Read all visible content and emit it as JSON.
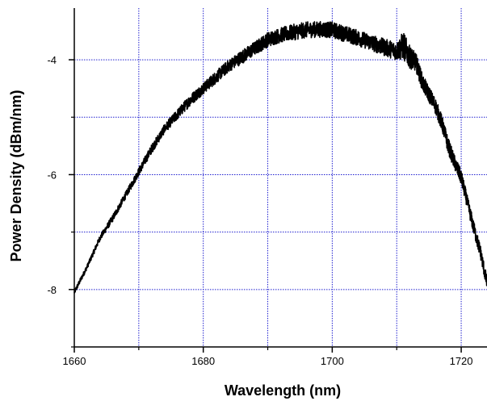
{
  "chart_data": {
    "type": "line",
    "title": "",
    "xlabel": "Wavelength (nm)",
    "ylabel": "Power Density (dBm/nm)",
    "xlim": [
      1660,
      1724
    ],
    "ylim": [
      -9,
      -3.1
    ],
    "x_ticks": [
      1660,
      1680,
      1700,
      1720
    ],
    "x_tick_labels": [
      "1660",
      "1680",
      "1700",
      "1720"
    ],
    "x_minor_ticks": [
      1670,
      1690,
      1710
    ],
    "y_ticks": [
      -8,
      -6,
      -4
    ],
    "y_tick_labels": [
      "-8",
      "-6",
      "-4"
    ],
    "y_minor_ticks": [
      -9,
      -7,
      -5
    ],
    "grid": true,
    "grid_color": "#2020d0",
    "line_color": "#000000",
    "series": [
      {
        "x": [
          1660,
          1662,
          1664,
          1666,
          1668,
          1670,
          1672,
          1674,
          1676,
          1678,
          1680,
          1682,
          1684,
          1686,
          1688,
          1690,
          1692,
          1694,
          1696,
          1698,
          1700,
          1702,
          1704,
          1706,
          1708,
          1710,
          1711,
          1712,
          1713,
          1714,
          1715,
          1716,
          1717,
          1718,
          1719,
          1720,
          1721,
          1722,
          1723,
          1724
        ],
        "y": [
          -8.05,
          -7.6,
          -7.1,
          -6.75,
          -6.35,
          -5.95,
          -5.55,
          -5.2,
          -4.95,
          -4.7,
          -4.5,
          -4.3,
          -4.1,
          -3.95,
          -3.8,
          -3.65,
          -3.57,
          -3.52,
          -3.48,
          -3.47,
          -3.48,
          -3.55,
          -3.62,
          -3.7,
          -3.78,
          -3.85,
          -3.75,
          -3.95,
          -4.05,
          -4.4,
          -4.6,
          -4.8,
          -5.1,
          -5.5,
          -5.8,
          -6.05,
          -6.5,
          -6.95,
          -7.35,
          -7.9
        ],
        "noise": [
          0.04,
          0.04,
          0.05,
          0.06,
          0.06,
          0.07,
          0.08,
          0.08,
          0.09,
          0.1,
          0.1,
          0.11,
          0.11,
          0.12,
          0.12,
          0.13,
          0.13,
          0.14,
          0.14,
          0.14,
          0.14,
          0.14,
          0.14,
          0.14,
          0.15,
          0.16,
          0.25,
          0.2,
          0.16,
          0.15,
          0.14,
          0.14,
          0.14,
          0.14,
          0.13,
          0.13,
          0.12,
          0.12,
          0.12,
          0.12
        ]
      }
    ]
  }
}
